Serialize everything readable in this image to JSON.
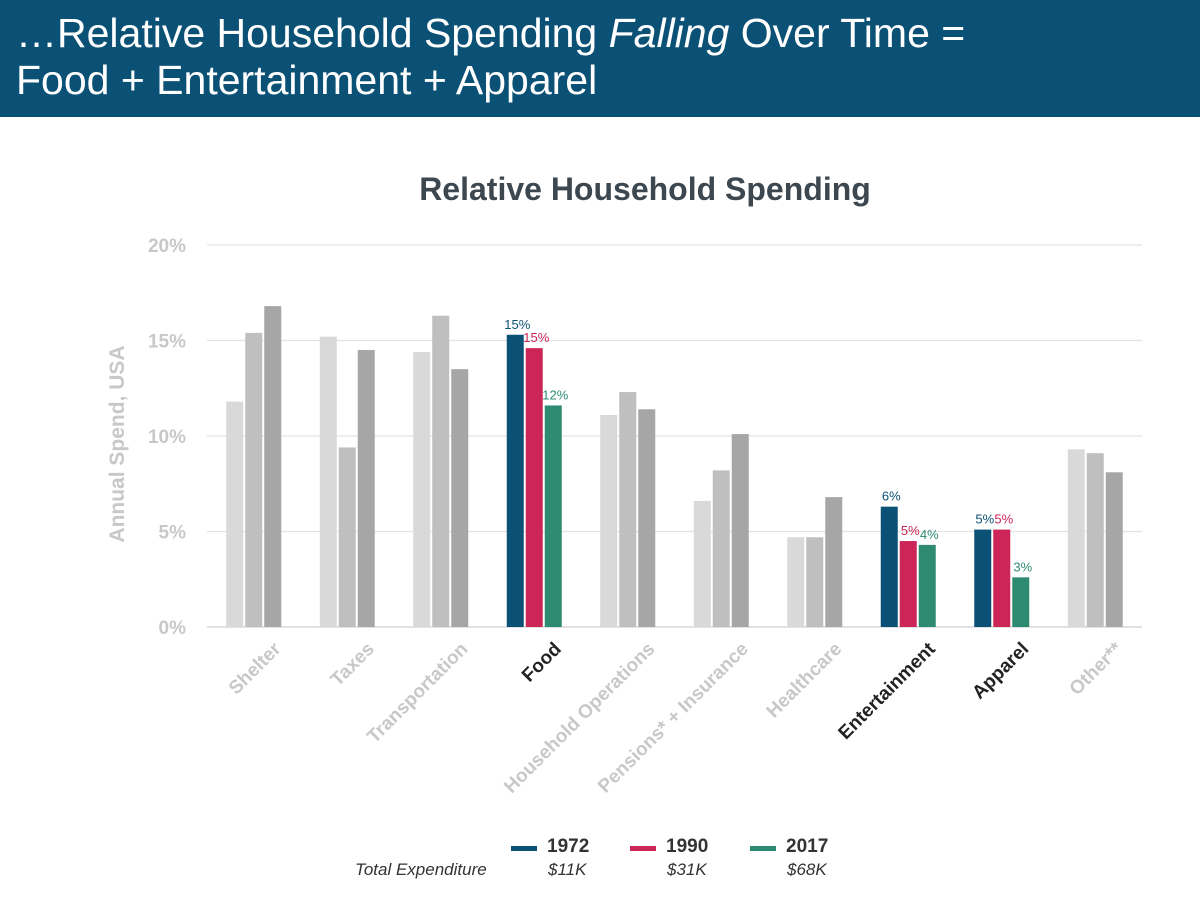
{
  "header": {
    "title_part1": "…Relative Household Spending ",
    "title_emph": "Falling",
    "title_part2": " Over Time =",
    "title_line2": "Food + Entertainment + Apparel",
    "background": "#0b5175"
  },
  "chart_data": {
    "type": "bar",
    "title": "Relative Household Spending",
    "ylabel": "Annual Spend, USA",
    "xlabel": "",
    "ylim": [
      0,
      20
    ],
    "yticks": [
      0,
      5,
      10,
      15,
      20
    ],
    "ytick_labels": [
      "0%",
      "5%",
      "10%",
      "15%",
      "20%"
    ],
    "grid": true,
    "categories": [
      "Shelter",
      "Taxes",
      "Transportation",
      "Food",
      "Household Operations",
      "Pensions* + Insurance",
      "Healthcare",
      "Entertainment",
      "Apparel",
      "Other**"
    ],
    "highlighted_categories": [
      "Food",
      "Entertainment",
      "Apparel"
    ],
    "series": [
      {
        "name": "1972",
        "color": "#0b5175",
        "muted_color": "#d9d9d9",
        "total_expenditure": "$11K",
        "values": [
          11.8,
          15.2,
          14.4,
          15.3,
          11.1,
          6.6,
          4.7,
          6.3,
          5.1,
          9.3
        ]
      },
      {
        "name": "1990",
        "color": "#cc2557",
        "muted_color": "#bfbfbf",
        "total_expenditure": "$31K",
        "values": [
          15.4,
          9.4,
          16.3,
          14.6,
          12.3,
          8.2,
          4.7,
          4.5,
          5.1,
          9.1
        ]
      },
      {
        "name": "2017",
        "color": "#2e8b72",
        "muted_color": "#a6a6a6",
        "total_expenditure": "$68K",
        "values": [
          16.8,
          14.5,
          13.5,
          11.6,
          11.4,
          10.1,
          6.8,
          4.3,
          2.6,
          8.1
        ]
      }
    ],
    "data_labels": {
      "Food": [
        "15%",
        "15%",
        "12%"
      ],
      "Entertainment": [
        "6%",
        "5%",
        "4%"
      ],
      "Apparel": [
        "5%",
        "5%",
        "3%"
      ]
    },
    "legend_position": "bottom-center",
    "legend_total_label": "Total Expenditure"
  },
  "colors": {
    "axis_text_muted": "#c8c8c8",
    "title_text": "#3d4750",
    "highlight_text": "#222222",
    "gridline": "#e3e3e3"
  }
}
